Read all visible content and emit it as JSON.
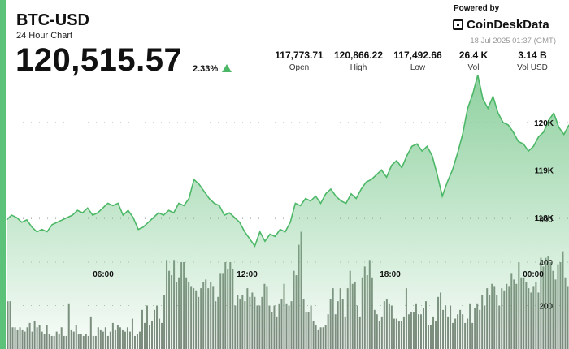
{
  "header": {
    "ticker": "BTC-USD",
    "subtitle": "24 Hour Chart",
    "price": "120,515.57",
    "change": "2.33%"
  },
  "stats": [
    {
      "value": "117,773.71",
      "label": "Open"
    },
    {
      "value": "120,866.22",
      "label": "High"
    },
    {
      "value": "117,492.66",
      "label": "Low"
    },
    {
      "value": "26.4 K",
      "label": "Vol"
    },
    {
      "value": "3.14 B",
      "label": "Vol USD"
    }
  ],
  "branding": {
    "powered_by": "Powered by",
    "name": "CoinDeskData",
    "icon": "coindesk-logo-icon",
    "timestamp": "18 Jul 2025 01:37 (GMT)"
  },
  "colors": {
    "accent": "#5cc27a",
    "line": "#4cb867",
    "fill": "#8fd19e",
    "volume": "#6e7a6e",
    "up_arrow": "#4cb867"
  },
  "chart_data": {
    "type": "line",
    "title": "",
    "x_ticks": [
      "06:00",
      "12:00",
      "18:00",
      "00:00"
    ],
    "price_ticks": [
      "118K",
      "119K",
      "120K"
    ],
    "volume_ticks": [
      "200",
      "400",
      "600"
    ],
    "ylim": [
      116300,
      121000
    ],
    "volume_ylim": [
      0,
      800
    ],
    "price_series": [
      117950,
      118050,
      118000,
      117900,
      117950,
      117800,
      117700,
      117750,
      117700,
      117850,
      117900,
      117950,
      118000,
      118050,
      118150,
      118100,
      118200,
      118050,
      118100,
      118200,
      118300,
      118250,
      118300,
      118050,
      118150,
      118000,
      117750,
      117800,
      117900,
      118000,
      118100,
      118050,
      118150,
      118100,
      118300,
      118250,
      118400,
      118800,
      118700,
      118550,
      118400,
      118300,
      118250,
      118050,
      118100,
      118000,
      117900,
      117700,
      117550,
      117400,
      117700,
      117500,
      117650,
      117600,
      117750,
      117700,
      117900,
      118300,
      118250,
      118400,
      118350,
      118450,
      118300,
      118500,
      118600,
      118450,
      118350,
      118300,
      118500,
      118400,
      118600,
      118750,
      118800,
      118900,
      119000,
      118850,
      119100,
      119200,
      119050,
      119300,
      119500,
      119550,
      119400,
      119500,
      119300,
      118900,
      118450,
      118750,
      119000,
      119350,
      119750,
      120300,
      120600,
      121000,
      120500,
      120300,
      120550,
      120200,
      120000,
      119950,
      119800,
      119600,
      119550,
      119400,
      119500,
      119700,
      119800,
      120050,
      120200,
      119900,
      119750,
      119950
    ],
    "volume_series": [
      220,
      220,
      100,
      100,
      90,
      100,
      90,
      80,
      100,
      120,
      80,
      130,
      100,
      110,
      80,
      70,
      110,
      70,
      60,
      60,
      80,
      70,
      100,
      60,
      60,
      210,
      90,
      80,
      110,
      70,
      70,
      60,
      70,
      60,
      150,
      60,
      60,
      100,
      90,
      80,
      100,
      60,
      80,
      120,
      90,
      110,
      100,
      90,
      80,
      100,
      80,
      140,
      60,
      70,
      80,
      180,
      120,
      200,
      110,
      130,
      180,
      200,
      140,
      120,
      250,
      410,
      360,
      340,
      410,
      310,
      330,
      400,
      400,
      330,
      310,
      290,
      280,
      270,
      240,
      280,
      310,
      320,
      280,
      310,
      290,
      220,
      240,
      350,
      350,
      400,
      370,
      400,
      370,
      200,
      250,
      230,
      250,
      220,
      280,
      240,
      260,
      240,
      200,
      200,
      240,
      300,
      290,
      200,
      170,
      200,
      150,
      210,
      230,
      300,
      210,
      200,
      220,
      360,
      340,
      480,
      540,
      230,
      170,
      170,
      200,
      130,
      110,
      90,
      100,
      100,
      110,
      160,
      230,
      280,
      160,
      220,
      280,
      230,
      150,
      280,
      360,
      300,
      310,
      200,
      150,
      330,
      380,
      340,
      410,
      330,
      180,
      160,
      130,
      150,
      220,
      230,
      210,
      200,
      140,
      140,
      130,
      130,
      150,
      280,
      160,
      170,
      170,
      210,
      160,
      160,
      190,
      220,
      110,
      110,
      150,
      130,
      240,
      260,
      180,
      200,
      150,
      200,
      120,
      140,
      160,
      180,
      160,
      120,
      140,
      210,
      120,
      190,
      210,
      180,
      250,
      200,
      280,
      250,
      300,
      290,
      250,
      200,
      280,
      270,
      300,
      290,
      350,
      320,
      300,
      400,
      330,
      330,
      310,
      280,
      260,
      290,
      310,
      260,
      420,
      380,
      420,
      430,
      400,
      360,
      320,
      390,
      400,
      450,
      330,
      290
    ]
  }
}
